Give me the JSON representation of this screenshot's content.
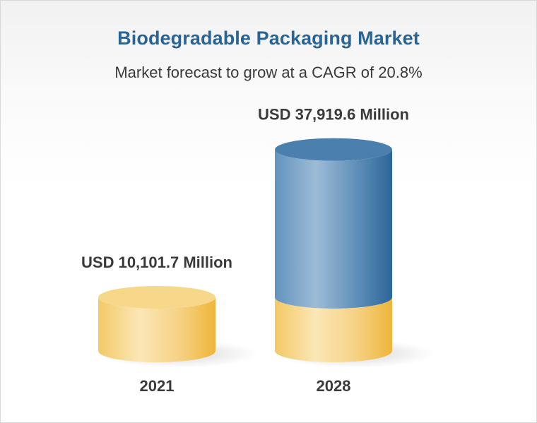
{
  "chart_data": {
    "type": "bar",
    "style": "3d-cylinder",
    "title": "Biodegradable Packaging Market",
    "subtitle": "Market forecast to grow at a CAGR of 20.8%",
    "categories": [
      "2021",
      "2028"
    ],
    "values": [
      10101.7,
      37919.6
    ],
    "value_labels": [
      "USD 10,101.7 Million",
      "USD 37,919.6 Million"
    ],
    "unit": "USD Million",
    "base_reference_value": 10101.7,
    "colors": {
      "gold_light": "#fbe3ad",
      "gold": "#f5cd72",
      "gold_dark": "#edb83e",
      "gold_top": "#f7d78a",
      "blue_light": "#9ab8d3",
      "blue": "#5d8db7",
      "blue_dark": "#2f6a9d",
      "blue_top": "#4a7fae",
      "title_color": "#2a6496",
      "label_color": "#3a3a3a"
    },
    "grid": false,
    "legend": "none"
  }
}
